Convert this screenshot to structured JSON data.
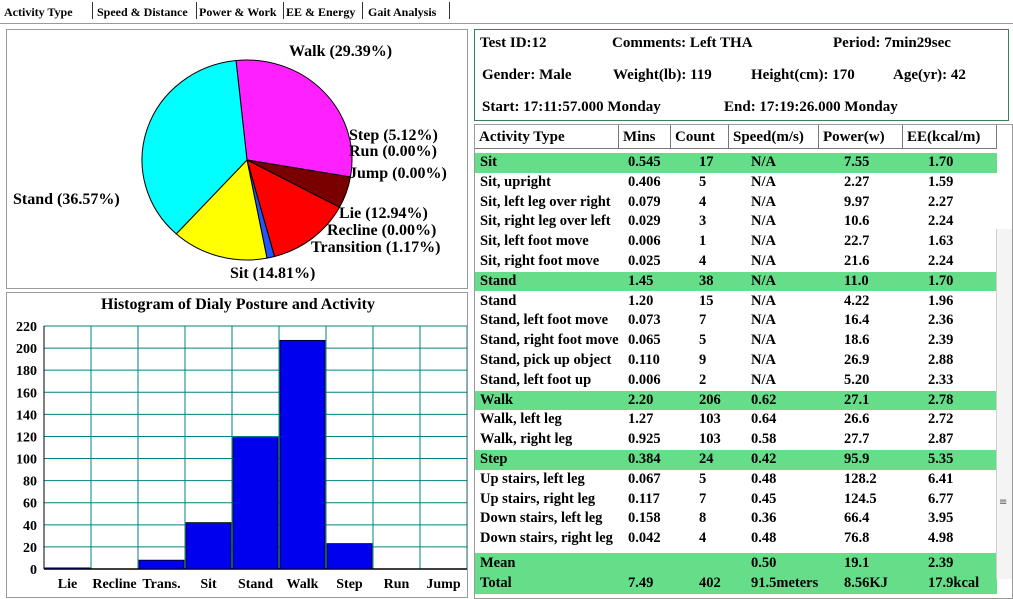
{
  "tabs": [
    {
      "label": "Activity Type",
      "active": true
    },
    {
      "label": "Speed & Distance",
      "active": false
    },
    {
      "label": "Power & Work",
      "active": false
    },
    {
      "label": "EE & Energy",
      "active": false
    },
    {
      "label": "Gait Analysis",
      "active": false
    }
  ],
  "pie_labels": {
    "walk": "Walk (29.39%)",
    "step": "Step (5.12%)",
    "run": "Run (0.00%)",
    "jump": "Jump (0.00%)",
    "stand": "Stand (36.57%)",
    "lie": "Lie (12.94%)",
    "recline": "Recline (0.00%)",
    "transition": "Transition (1.17%)",
    "sit": "Sit (14.81%)"
  },
  "info": {
    "test_id": "Test ID:12",
    "comments": "Comments: Left THA",
    "period": "Period: 7min29sec",
    "gender": "Gender: Male",
    "weight": "Weight(lb): 119",
    "height": "Height(cm): 170",
    "age": "Age(yr): 42",
    "start": "Start: 17:11:57.000 Monday",
    "end": "End: 17:19:26.000 Monday"
  },
  "table": {
    "headers": [
      "Activity Type",
      "Mins",
      "Count",
      "Speed(m/s)",
      "Power(w)",
      "EE(kcal/m)"
    ],
    "rows": [
      {
        "cells": [
          "Sit",
          "0.545",
          "17",
          "N/A",
          "7.55",
          "1.70"
        ],
        "category": true
      },
      {
        "cells": [
          "Sit, upright",
          "0.406",
          "5",
          "N/A",
          "2.27",
          "1.59"
        ]
      },
      {
        "cells": [
          "Sit, left leg over right",
          "0.079",
          "4",
          "N/A",
          "9.97",
          "2.27"
        ]
      },
      {
        "cells": [
          "Sit, right leg over left",
          "0.029",
          "3",
          "N/A",
          "10.6",
          "2.24"
        ]
      },
      {
        "cells": [
          "Sit, left foot move",
          "0.006",
          "1",
          "N/A",
          "22.7",
          "1.63"
        ]
      },
      {
        "cells": [
          "Sit, right foot move",
          "0.025",
          "4",
          "N/A",
          "21.6",
          "2.24"
        ]
      },
      {
        "cells": [
          "Stand",
          "1.45",
          "38",
          "N/A",
          "11.0",
          "1.70"
        ],
        "category": true
      },
      {
        "cells": [
          "Stand",
          "1.20",
          "15",
          "N/A",
          "4.22",
          "1.96"
        ]
      },
      {
        "cells": [
          "Stand, left foot move",
          "0.073",
          "7",
          "N/A",
          "16.4",
          "2.36"
        ]
      },
      {
        "cells": [
          "Stand, right foot move",
          "0.065",
          "5",
          "N/A",
          "18.6",
          "2.39"
        ]
      },
      {
        "cells": [
          "Stand, pick up object",
          "0.110",
          "9",
          "N/A",
          "26.9",
          "2.88"
        ]
      },
      {
        "cells": [
          "Stand, left foot up",
          "0.006",
          "2",
          "N/A",
          "5.20",
          "2.33"
        ]
      },
      {
        "cells": [
          "Walk",
          "2.20",
          "206",
          "0.62",
          "27.1",
          "2.78"
        ],
        "category": true
      },
      {
        "cells": [
          "Walk, left leg",
          "1.27",
          "103",
          "0.64",
          "26.6",
          "2.72"
        ]
      },
      {
        "cells": [
          "Walk, right leg",
          "0.925",
          "103",
          "0.58",
          "27.7",
          "2.87"
        ]
      },
      {
        "cells": [
          "Step",
          "0.384",
          "24",
          "0.42",
          "95.9",
          "5.35"
        ],
        "category": true
      },
      {
        "cells": [
          "Up stairs, left leg",
          "0.067",
          "5",
          "0.48",
          "128.2",
          "6.41"
        ]
      },
      {
        "cells": [
          "Up stairs, right leg",
          "0.117",
          "7",
          "0.45",
          "124.5",
          "6.77"
        ]
      },
      {
        "cells": [
          "Down stairs, left leg",
          "0.158",
          "8",
          "0.36",
          "66.4",
          "3.95"
        ]
      },
      {
        "cells": [
          "Down stairs, right leg",
          "0.042",
          "4",
          "0.48",
          "76.8",
          "4.98"
        ]
      }
    ],
    "mean_row": [
      "Mean",
      "",
      "",
      "0.50",
      "19.1",
      "2.39"
    ],
    "total_row": [
      "Total",
      "7.49",
      "402",
      "91.5meters",
      "8.56KJ",
      "17.9kcal"
    ]
  },
  "chart_data": [
    {
      "type": "pie",
      "title": "",
      "categories": [
        "Walk",
        "Step",
        "Run",
        "Jump",
        "Lie",
        "Recline",
        "Transition",
        "Sit",
        "Stand"
      ],
      "values": [
        29.39,
        5.12,
        0.0,
        0.0,
        12.94,
        0.0,
        1.17,
        14.81,
        36.57
      ],
      "colors": [
        "#ff20ff",
        "#7a0000",
        "#7a0000",
        "#ff0000",
        "#ff0000",
        "#2255ff",
        "#2255ff",
        "#ffff00",
        "#00ffff"
      ],
      "legend": "none"
    },
    {
      "type": "bar",
      "title": "Histogram of Dialy Posture and Activity",
      "categories": [
        "Lie",
        "Recline",
        "Trans.",
        "Sit",
        "Stand",
        "Walk",
        "Step",
        "Run",
        "Jump"
      ],
      "values": [
        1,
        0,
        8,
        42,
        119,
        207,
        23,
        0,
        0
      ],
      "ylim": [
        0,
        220
      ],
      "yticks": [
        "0",
        "20",
        "40",
        "60",
        "80",
        "100",
        "120",
        "140",
        "160",
        "180",
        "200",
        "220"
      ],
      "grid": true,
      "bar_color": "#0000ee",
      "grid_color": "#008080",
      "xlabel": "",
      "ylabel": ""
    }
  ]
}
